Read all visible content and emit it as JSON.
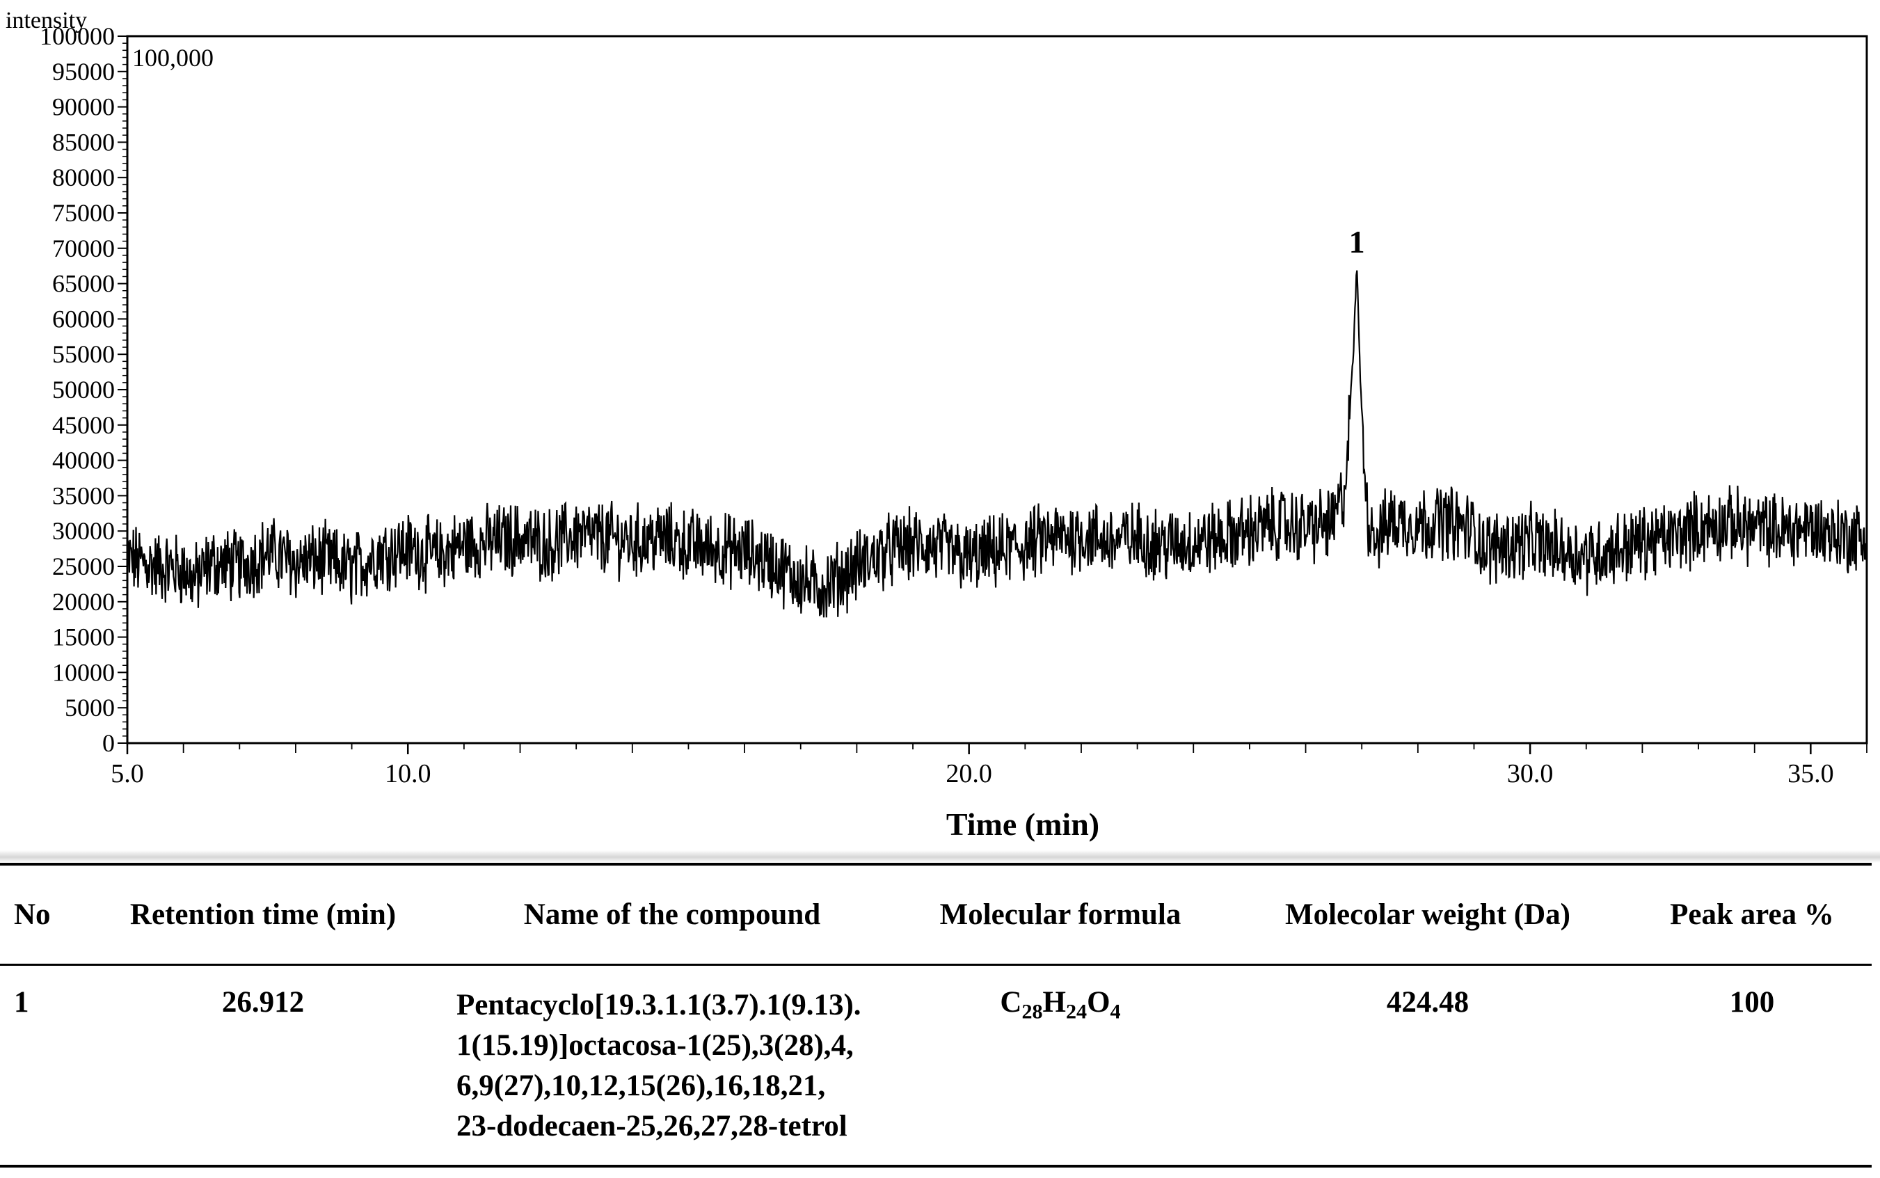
{
  "chart_data": {
    "type": "line",
    "ylabel": "intensity",
    "xlabel": "Time (min)",
    "scale_label": "100,000",
    "xlim": [
      5.0,
      36.0
    ],
    "ylim": [
      0,
      100000
    ],
    "x_ticks": [
      5.0,
      10.0,
      20.0,
      30.0,
      35.0
    ],
    "x_tick_labels": [
      "5.0",
      "10.0",
      "20.0",
      "30.0",
      "35.0"
    ],
    "y_ticks": [
      0,
      5000,
      10000,
      15000,
      20000,
      25000,
      30000,
      35000,
      40000,
      45000,
      50000,
      55000,
      60000,
      65000,
      70000,
      75000,
      80000,
      85000,
      90000,
      95000,
      100000
    ],
    "y_tick_labels": [
      "0",
      "5000",
      "10000",
      "15000",
      "20000",
      "25000",
      "30000",
      "35000",
      "40000",
      "45000",
      "50000",
      "55000",
      "60000",
      "65000",
      "70000",
      "75000",
      "80000",
      "85000",
      "90000",
      "95000",
      "100000"
    ],
    "series": [
      {
        "x": [
          5.0,
          5.5,
          6.0,
          6.2,
          6.5,
          7.0,
          7.5,
          8.0,
          8.5,
          9.0,
          9.5,
          10.0,
          10.5,
          11.0,
          11.5,
          12.0,
          12.5,
          13.0,
          13.5,
          14.0,
          14.5,
          15.0,
          15.5,
          16.0,
          16.5,
          17.0,
          17.3,
          17.5,
          18.0,
          18.5,
          19.0,
          19.5,
          20.0,
          20.5,
          21.0,
          21.5,
          22.0,
          22.5,
          23.0,
          23.5,
          24.0,
          24.5,
          25.0,
          25.5,
          26.0,
          26.5,
          26.7,
          26.85,
          26.912,
          26.97,
          27.1,
          27.3,
          27.5,
          28.0,
          28.5,
          29.0,
          29.2,
          29.5,
          30.0,
          30.5,
          31.0,
          31.5,
          32.0,
          32.5,
          33.0,
          33.5,
          34.0,
          34.5,
          35.0,
          35.5,
          36.0
        ],
        "y": [
          26000,
          25000,
          24500,
          23000,
          25500,
          25000,
          27000,
          25500,
          26000,
          24500,
          27000,
          27500,
          26500,
          28000,
          28500,
          29000,
          28000,
          29500,
          29000,
          28500,
          29000,
          28000,
          27500,
          27000,
          25500,
          23000,
          22000,
          22500,
          25000,
          27000,
          28000,
          27500,
          26000,
          27000,
          28000,
          29000,
          29500,
          28500,
          29000,
          28000,
          28500,
          29000,
          30000,
          31000,
          30500,
          31000,
          36000,
          55000,
          68000,
          52000,
          32000,
          29000,
          31500,
          31000,
          31500,
          30000,
          27500,
          28000,
          28500,
          27500,
          26500,
          27500,
          28500,
          29000,
          30500,
          31000,
          30500,
          30000,
          30500,
          29500,
          29000
        ]
      }
    ],
    "annotations": [
      {
        "x": 26.912,
        "y": 68000,
        "text": "1"
      }
    ],
    "grid": false,
    "legend": "none"
  },
  "table": {
    "headers": [
      "No",
      "Retention time (min)",
      "Name of the compound",
      "Molecular formula",
      "Molecolar weight (Da)",
      "Peak area %"
    ],
    "rows": [
      {
        "no": "1",
        "retention": "26.912",
        "name_lines": [
          "Pentacyclo[19.3.1.1(3.7).1(9.13).",
          "1(15.19)]octacosa-1(25),3(28),4,",
          "6,9(27),10,12,15(26),16,18,21,",
          "23-dodecaen-25,26,27,28-tetrol"
        ],
        "formula": "C28H24O4",
        "weight": "424.48",
        "area": "100"
      }
    ]
  }
}
